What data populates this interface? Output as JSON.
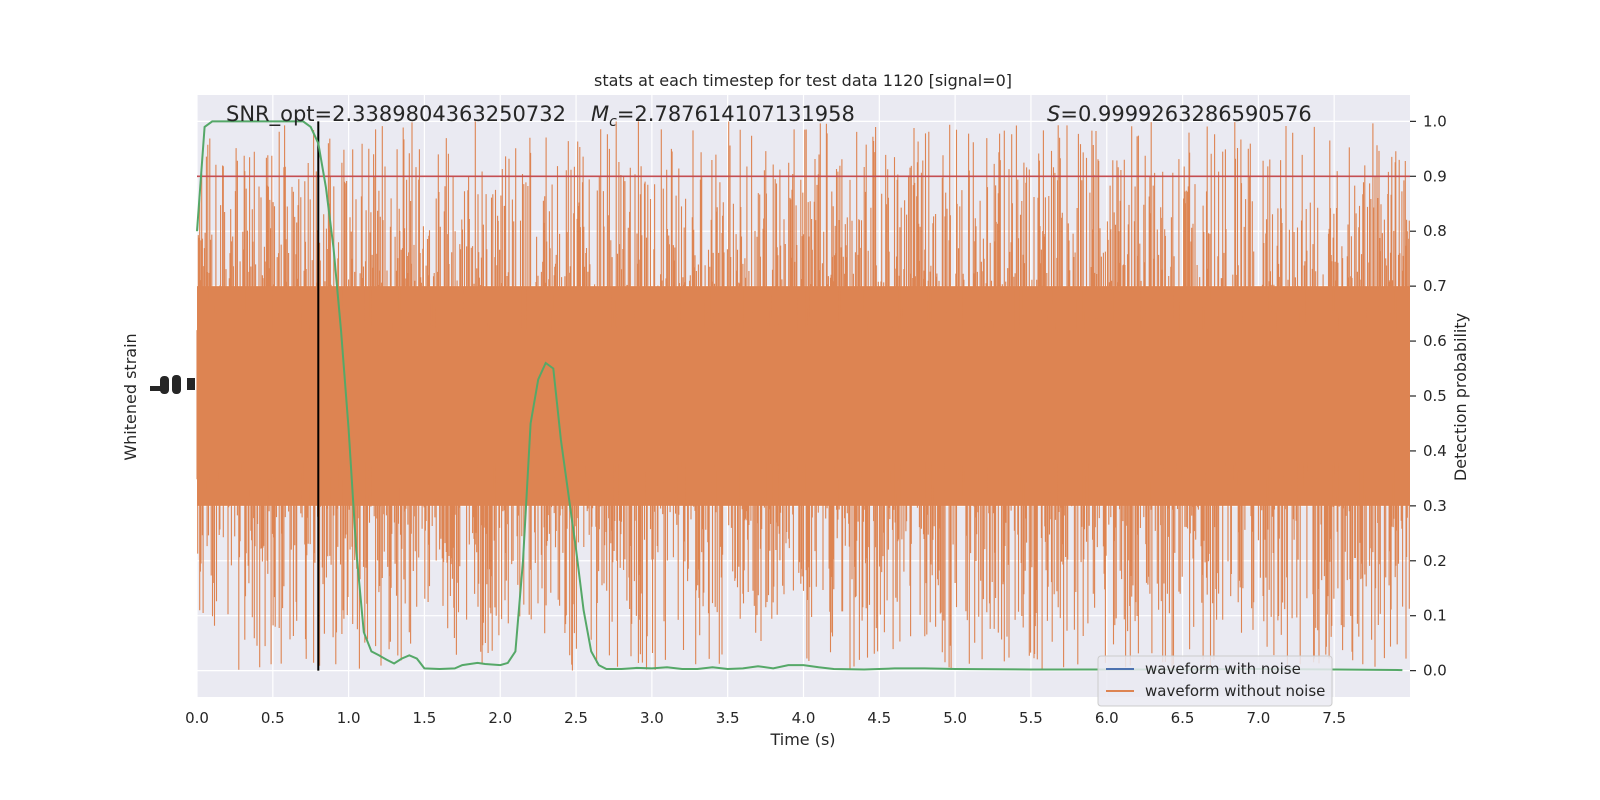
{
  "chart_data": {
    "type": "line",
    "title": "stats at each timestep for test data 1120 [signal=0]",
    "xlabel": "Time (s)",
    "ylabel_left": "Whitened strain",
    "ylabel_right": "Detection probability",
    "xlim": [
      0.0,
      8.0
    ],
    "ylim_right": [
      -0.048,
      1.048
    ],
    "x_ticks": [
      "0.0",
      "0.5",
      "1.0",
      "1.5",
      "2.0",
      "2.5",
      "3.0",
      "3.5",
      "4.0",
      "4.5",
      "5.0",
      "5.5",
      "6.0",
      "6.5",
      "7.0",
      "7.5"
    ],
    "y_ticks_right": [
      "0.0",
      "0.1",
      "0.2",
      "0.3",
      "0.4",
      "0.5",
      "0.6",
      "0.7",
      "0.8",
      "0.9",
      "1.0"
    ],
    "grid": true,
    "annotations": {
      "snr": "SNR_opt=2.3389804363250732",
      "mc_prefix": "M",
      "mc_sub": "c",
      "mc_value": "=2.787614107131958",
      "s_prefix": "S",
      "s_value": "=0.9999263286590576"
    },
    "threshold": 0.9,
    "marker_time": 0.8,
    "legend": {
      "placement": "lower-right",
      "entries": [
        {
          "name": "waveform with noise",
          "color": "#4c72b0"
        },
        {
          "name": "waveform without noise",
          "color": "#dd8452"
        }
      ]
    },
    "series": [
      {
        "name": "detection probability",
        "color": "#55a868",
        "x": [
          0.0,
          0.05,
          0.1,
          0.15,
          0.2,
          0.3,
          0.4,
          0.5,
          0.6,
          0.7,
          0.75,
          0.8,
          0.85,
          0.9,
          0.95,
          1.0,
          1.05,
          1.1,
          1.15,
          1.2,
          1.25,
          1.3,
          1.35,
          1.4,
          1.45,
          1.5,
          1.6,
          1.7,
          1.75,
          1.8,
          1.85,
          1.9,
          2.0,
          2.05,
          2.1,
          2.15,
          2.2,
          2.25,
          2.3,
          2.35,
          2.4,
          2.45,
          2.5,
          2.55,
          2.6,
          2.65,
          2.7,
          2.8,
          2.9,
          3.0,
          3.1,
          3.2,
          3.3,
          3.4,
          3.5,
          3.6,
          3.7,
          3.8,
          3.9,
          4.0,
          4.1,
          4.2,
          4.4,
          4.6,
          4.8,
          5.0,
          5.5,
          6.0,
          6.5,
          7.0,
          7.5,
          7.95
        ],
        "y": [
          0.8,
          0.99,
          1.0,
          1.0,
          1.0,
          1.0,
          1.0,
          1.0,
          1.0,
          1.0,
          0.99,
          0.96,
          0.88,
          0.77,
          0.62,
          0.44,
          0.22,
          0.07,
          0.035,
          0.028,
          0.02,
          0.013,
          0.022,
          0.028,
          0.022,
          0.004,
          0.003,
          0.004,
          0.01,
          0.012,
          0.014,
          0.012,
          0.01,
          0.014,
          0.035,
          0.2,
          0.45,
          0.53,
          0.56,
          0.55,
          0.42,
          0.32,
          0.22,
          0.11,
          0.035,
          0.01,
          0.003,
          0.003,
          0.005,
          0.004,
          0.006,
          0.003,
          0.003,
          0.006,
          0.003,
          0.004,
          0.008,
          0.004,
          0.01,
          0.01,
          0.006,
          0.003,
          0.002,
          0.004,
          0.004,
          0.003,
          0.002,
          0.002,
          0.002,
          0.003,
          0.002,
          0.001
        ]
      },
      {
        "name": "waveform without noise",
        "color": "#dd8452",
        "style": "dense noise band; spikes span roughly 0.0 to 1.0, bulk between about 0.3 and 0.7 on the right axis"
      }
    ]
  }
}
